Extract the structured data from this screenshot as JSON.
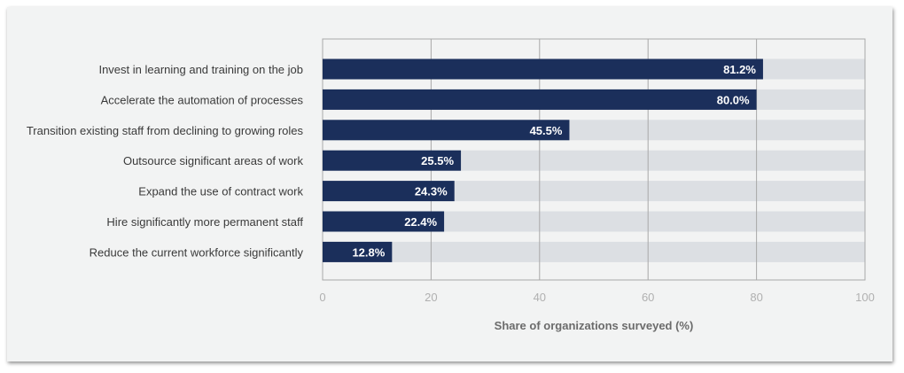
{
  "chart_data": {
    "type": "bar",
    "orientation": "horizontal",
    "categories": [
      "Invest in learning and training on the job",
      "Accelerate the automation of processes",
      "Transition existing staff from declining to growing roles",
      "Outsource significant areas of work",
      "Expand the use of contract work",
      "Hire significantly more permanent staff",
      "Reduce the current workforce significantly"
    ],
    "values": [
      81.2,
      80.0,
      45.5,
      25.5,
      24.3,
      22.4,
      12.8
    ],
    "data_labels": [
      "81.2%",
      "80.0%",
      "45.5%",
      "25.5%",
      "24.3%",
      "22.4%",
      "12.8%"
    ],
    "xlabel": "Share of organizations surveyed (%)",
    "ylabel": "",
    "xlim": [
      0,
      100
    ],
    "xticks": [
      "0",
      "20",
      "40",
      "60",
      "80",
      "100"
    ],
    "grid": true,
    "colors": {
      "bar": "#1b2f5b",
      "track": "#dcdfe3",
      "background": "#f2f3f3",
      "grid": "#a8a8a8"
    }
  }
}
